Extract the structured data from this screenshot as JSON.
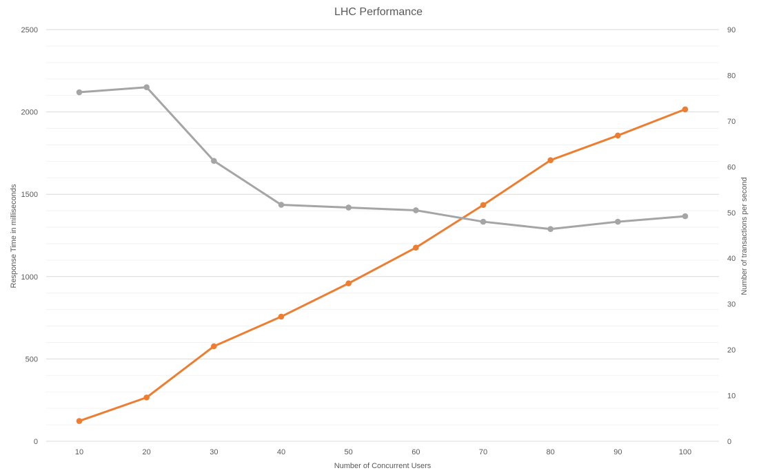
{
  "chart_data": {
    "type": "line",
    "title": "LHC Performance",
    "xlabel": "Number of Concurrent Users",
    "ylabel_left": "Response Time in milliseconds",
    "ylabel_right": "Number of transactions per second",
    "x": [
      10,
      20,
      30,
      40,
      50,
      60,
      70,
      80,
      90,
      100
    ],
    "y_left_ticks": [
      0,
      500,
      1000,
      1500,
      2000,
      2500
    ],
    "y_right_ticks": [
      0,
      10,
      20,
      30,
      40,
      50,
      60,
      70,
      80,
      90
    ],
    "ylim_left": [
      0,
      2500
    ],
    "ylim_right": [
      0,
      90
    ],
    "grid": true,
    "series": [
      {
        "axis": "left",
        "color": "#ED7D31",
        "values": [
          123,
          266,
          577,
          757,
          959,
          1176,
          1435,
          1707,
          1857,
          2016
        ]
      },
      {
        "axis": "right",
        "color": "#A5A5A5",
        "values": [
          76.3,
          77.4,
          61.3,
          51.7,
          51.1,
          50.5,
          48.0,
          46.4,
          48.0,
          49.2
        ]
      }
    ],
    "colors": {
      "left_axis_label": "#ED7D31",
      "right_axis_label": "#595959",
      "gridline": "#D9D9D9",
      "minor_gridline": "#F2F2F2"
    }
  }
}
